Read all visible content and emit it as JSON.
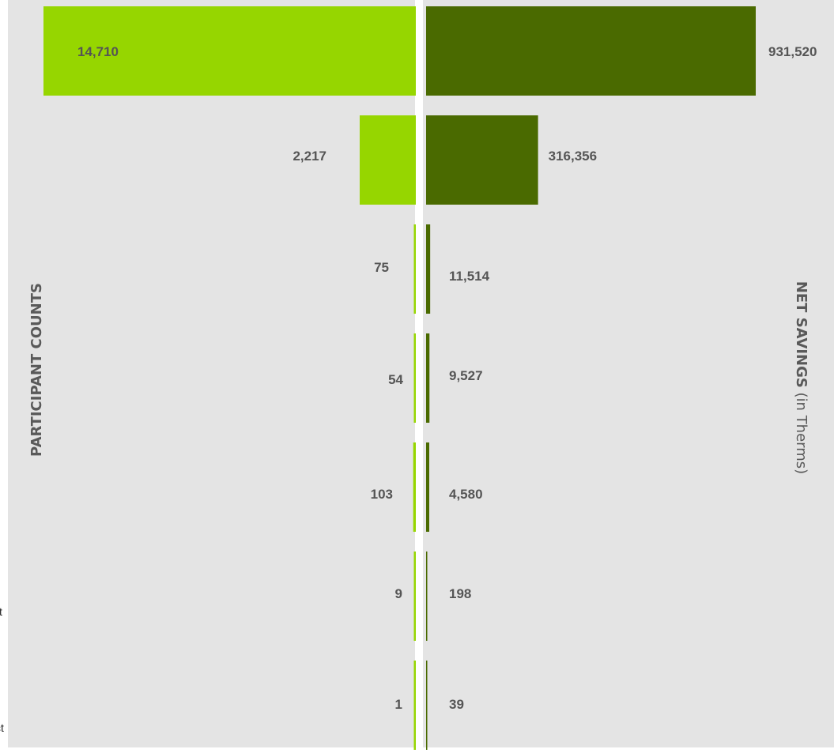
{
  "chart_data": {
    "type": "bar",
    "layout": "back-to-back horizontal bars",
    "left_axis_title": "PARTICIPANT COUNTS",
    "right_axis_title_bold": "NET SAVINGS",
    "right_axis_title_regular": " (in Therms)",
    "series": [
      {
        "name": "PARTICIPANT COUNTS",
        "values": [
          14710,
          2217,
          75,
          54,
          103,
          9,
          1
        ],
        "labels": [
          "14,710",
          "2,217",
          "75",
          "54",
          "103",
          "9",
          "1"
        ],
        "color": "#96d600"
      },
      {
        "name": "NET SAVINGS (in Therms)",
        "values": [
          931520,
          316356,
          11514,
          9527,
          4580,
          198,
          39
        ],
        "labels": [
          "931,520",
          "316,356",
          "11,514",
          "9,527",
          "4,580",
          "198",
          "39"
        ],
        "color": "#4a6a00"
      }
    ],
    "edge_fragments": [
      "t",
      "ct"
    ],
    "background": "#e4e4e4",
    "grid": false,
    "legend": "none"
  }
}
